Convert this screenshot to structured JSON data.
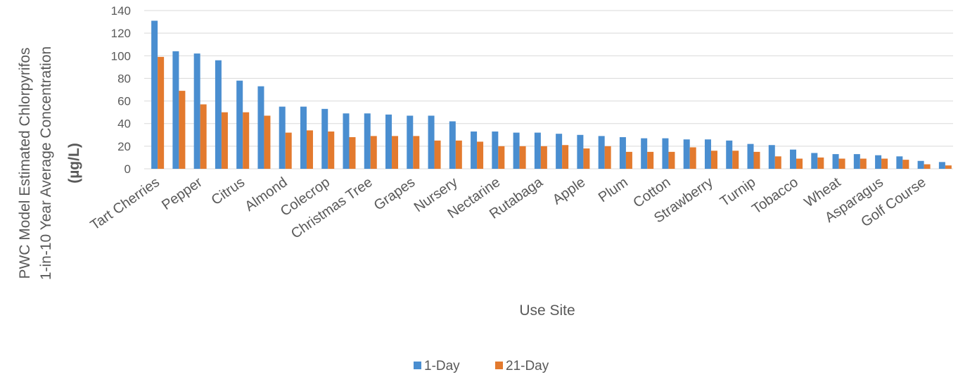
{
  "chart_data": {
    "type": "bar",
    "title": "",
    "xlabel": "Use Site",
    "ylabel_lines": [
      "PWC Model Estimated Chlorpyrifos",
      "1-in-10 Year Average  Concentration",
      "(µg/L)"
    ],
    "ylim": [
      0,
      140
    ],
    "yticks": [
      0,
      20,
      40,
      60,
      80,
      100,
      120,
      140
    ],
    "grid": true,
    "legend_position": "bottom",
    "categories": [
      "Tart Cherries",
      "",
      "Pepper",
      "",
      "Citrus",
      "",
      "Almond",
      "",
      "Colecrop",
      "",
      "Christmas Tree",
      "",
      "Grapes",
      "",
      "Nursery",
      "",
      "Nectarine",
      "",
      "Rutabaga",
      "",
      "Apple",
      "",
      "Plum",
      "",
      "Cotton",
      "",
      "Strawberry",
      "",
      "Turnip",
      "",
      "Tobacco",
      "",
      "Wheat",
      "",
      "Asparagus",
      "",
      "Golf Course",
      ""
    ],
    "series": [
      {
        "name": "1-Day",
        "color": "#4a8ed0",
        "values": [
          131,
          104,
          102,
          96,
          78,
          73,
          55,
          55,
          53,
          49,
          49,
          48,
          47,
          47,
          42,
          33,
          33,
          32,
          32,
          31,
          30,
          29,
          28,
          27,
          27,
          26,
          26,
          25,
          22,
          21,
          17,
          14,
          13,
          13,
          12,
          11,
          7,
          6
        ]
      },
      {
        "name": "21-Day",
        "color": "#e37a2e",
        "values": [
          99,
          69,
          57,
          50,
          50,
          47,
          32,
          34,
          33,
          28,
          29,
          29,
          29,
          25,
          25,
          24,
          20,
          20,
          20,
          21,
          18,
          20,
          15,
          15,
          15,
          19,
          16,
          16,
          15,
          11,
          9,
          10,
          9,
          9,
          9,
          8,
          4,
          3
        ]
      }
    ]
  }
}
